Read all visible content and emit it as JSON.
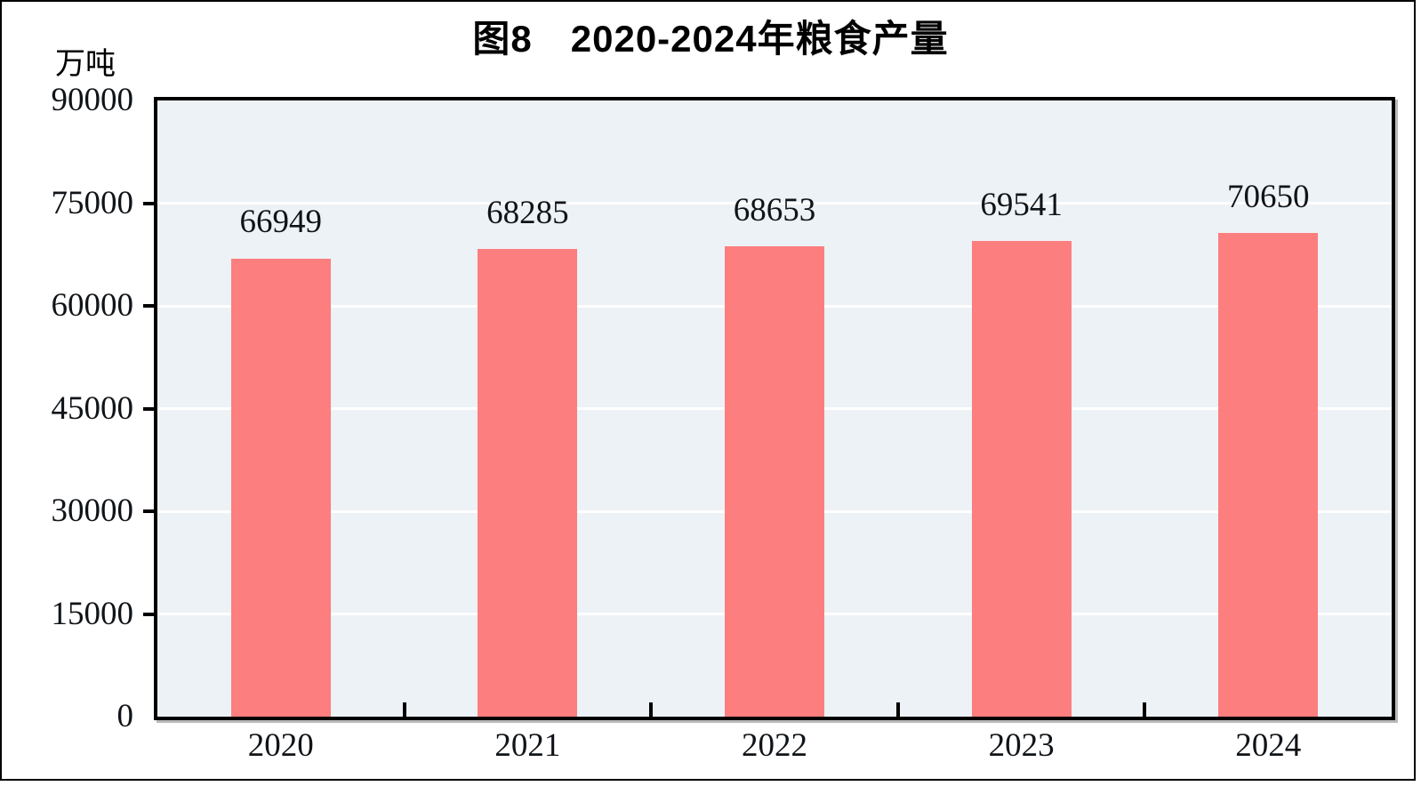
{
  "figure": {
    "title": "图8　2020-2024年粮食产量",
    "unit_label": "万吨"
  },
  "chart_data": {
    "type": "bar",
    "title": "图8　2020-2024年粮食产量",
    "xlabel": "",
    "ylabel": "万吨",
    "categories": [
      "2020",
      "2021",
      "2022",
      "2023",
      "2024"
    ],
    "values": [
      66949,
      68285,
      68653,
      69541,
      70650
    ],
    "ylim": [
      0,
      90000
    ],
    "yticks": [
      0,
      15000,
      30000,
      45000,
      60000,
      75000,
      90000
    ],
    "grid": true,
    "legend": "none",
    "bar_color": "#fc7e7e",
    "plot_bg_color": "#edf2f7",
    "gridline_color": "#ffffff",
    "axis_color": "#000000",
    "label_color": "#101418"
  }
}
